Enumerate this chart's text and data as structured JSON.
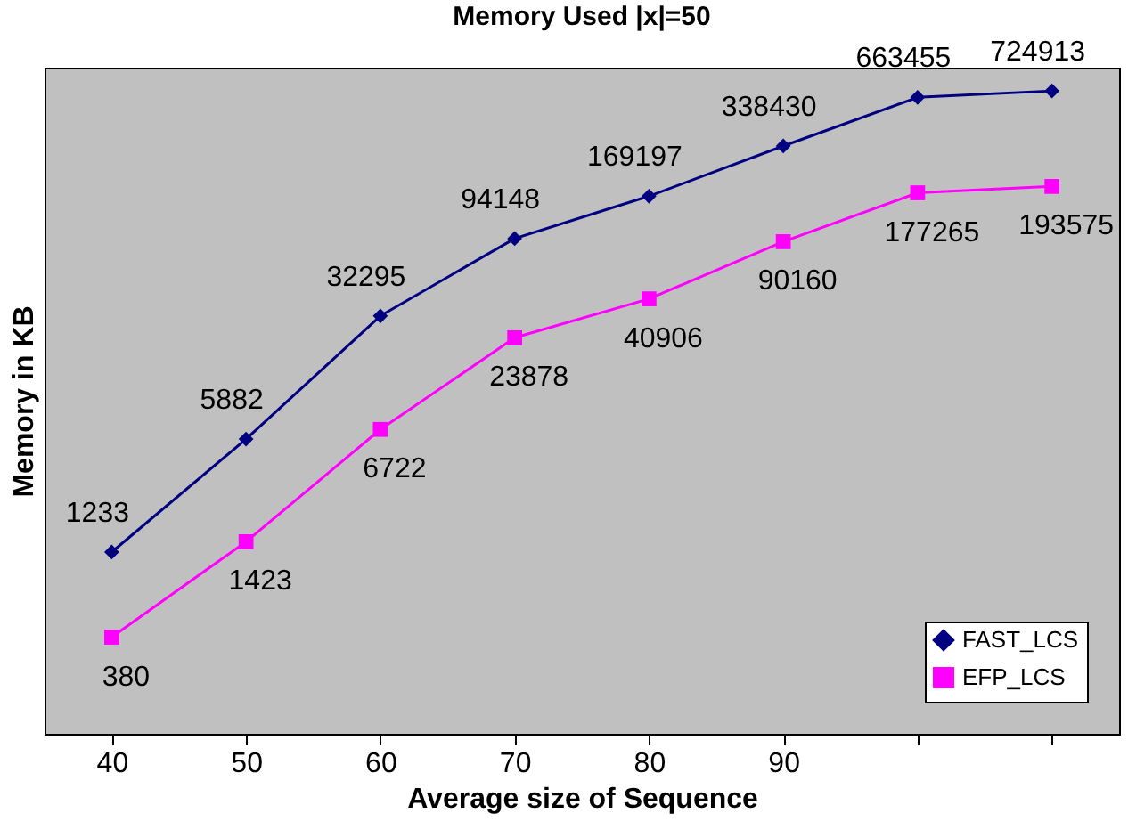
{
  "chart_data": {
    "type": "line",
    "title": "Memory Used |x|=50",
    "xlabel": "Average size of Sequence",
    "ylabel": "Memory in KB",
    "categories": [
      "40",
      "50",
      "60",
      "70",
      "80",
      "90",
      null,
      null
    ],
    "series": [
      {
        "name": "FAST_LCS",
        "color": "#000080",
        "marker": "diamond",
        "values": [
          1233,
          5882,
          32295,
          94148,
          169197,
          338430,
          663455,
          724913
        ]
      },
      {
        "name": "EFP_LCS",
        "color": "#ff00ff",
        "marker": "square",
        "values": [
          380,
          1423,
          6722,
          23878,
          40906,
          90160,
          177265,
          193575
        ]
      }
    ],
    "log": "y",
    "ylim": [
      100,
      1000000
    ],
    "tick_labels": "x",
    "data_labels": true,
    "grid": false,
    "legend": "bottom right",
    "line_style": "solid"
  }
}
